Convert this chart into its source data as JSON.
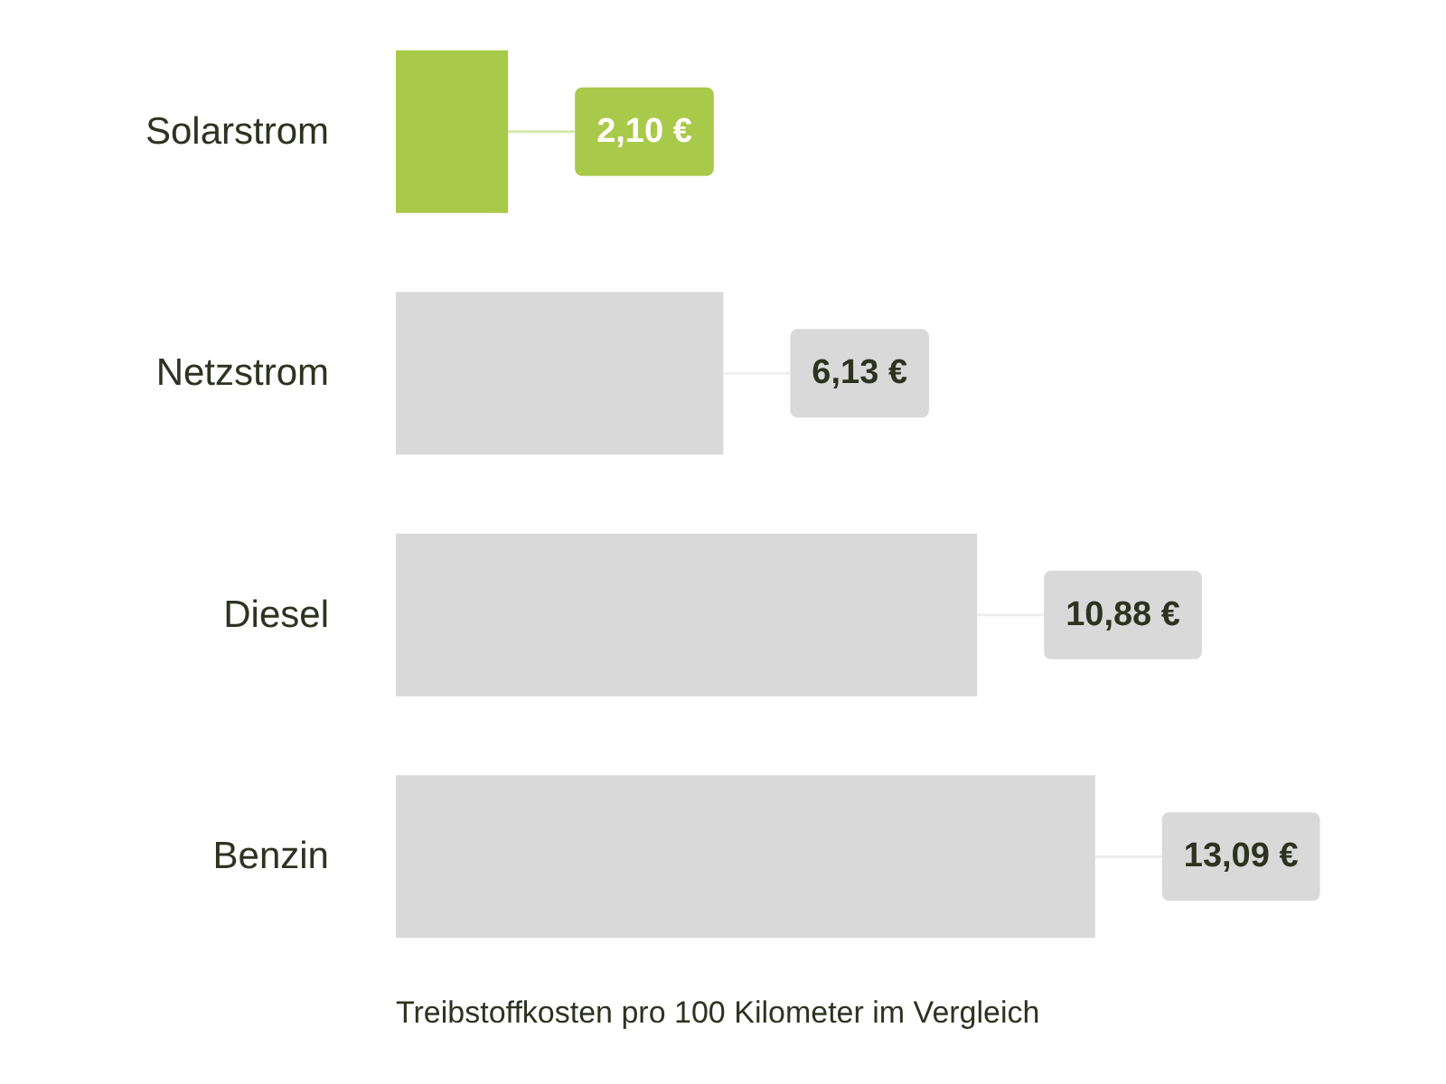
{
  "chart_data": {
    "type": "bar",
    "orientation": "horizontal",
    "categories": [
      "Solarstrom",
      "Netzstrom",
      "Diesel",
      "Benzin"
    ],
    "values": [
      2.1,
      6.13,
      10.88,
      13.09
    ],
    "colors": [
      "#a9c94a",
      "#d9d9d9",
      "#d9d9d9",
      "#d9d9d9"
    ],
    "value_labels": [
      "2,10 €",
      "6,13 €",
      "10,88 €",
      "13,09 €"
    ],
    "annotations": [
      "Treibstoffkosten pro 100 Kilometer im Vergleich"
    ],
    "tick_labels": "y"
  }
}
